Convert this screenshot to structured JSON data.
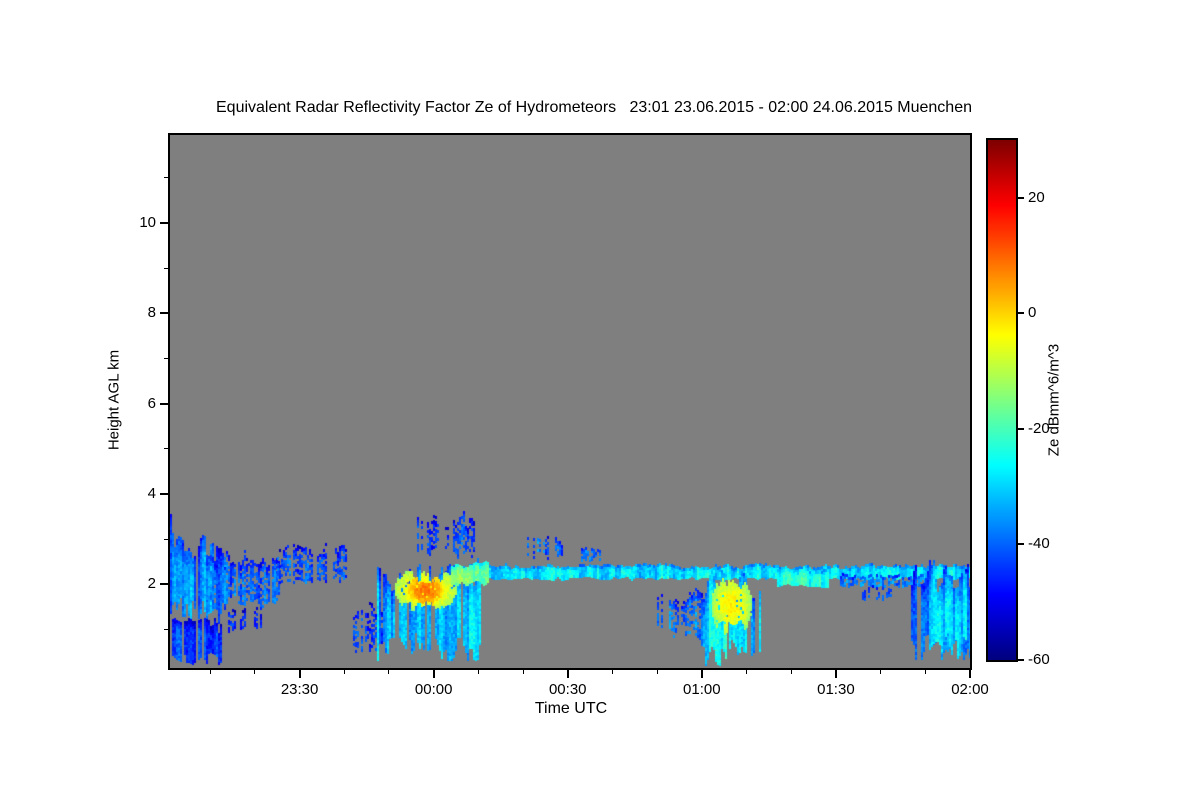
{
  "title": "Equivalent Radar Reflectivity Factor Ze of Hydrometeors   23:01 23.06.2015 - 02:00 24.06.2015 Muenchen",
  "axes": {
    "x_label": "Time UTC",
    "y_label": "Height AGL km"
  },
  "chart_data": {
    "type": "heatmap",
    "title": "Equivalent Radar Reflectivity Factor Ze of Hydrometeors",
    "time_span": "23:01 23.06.2015 - 02:00 24.06.2015",
    "station": "Muenchen",
    "xlabel": "Time UTC",
    "ylabel": "Height AGL km",
    "x_range_minutes_from_2301": [
      0,
      179
    ],
    "x_ticks": [
      {
        "minute": 29,
        "label": "23:30"
      },
      {
        "minute": 59,
        "label": "00:00"
      },
      {
        "minute": 89,
        "label": "00:30"
      },
      {
        "minute": 119,
        "label": "01:00"
      },
      {
        "minute": 149,
        "label": "01:30"
      },
      {
        "minute": 179,
        "label": "02:00"
      }
    ],
    "x_minor_tick_step_minutes": 10,
    "y_range_km": [
      0.15,
      11.95
    ],
    "y_ticks": [
      {
        "km": 2,
        "label": "2"
      },
      {
        "km": 4,
        "label": "4"
      },
      {
        "km": 6,
        "label": "6"
      },
      {
        "km": 8,
        "label": "8"
      },
      {
        "km": 10,
        "label": "10"
      }
    ],
    "y_minor_ticks_km": [
      1,
      3,
      5,
      7,
      9,
      11
    ],
    "no_data_color": "#7f7f7f",
    "colorbar": {
      "label": "Ze dBmm^6/m^3",
      "range_dB": [
        -60,
        30
      ],
      "ticks": [
        {
          "value": 20,
          "label": "20"
        },
        {
          "value": 0,
          "label": "0"
        },
        {
          "value": -20,
          "label": "-20"
        },
        {
          "value": -40,
          "label": "-40"
        },
        {
          "value": -60,
          "label": "-60"
        }
      ],
      "colormap": "jet"
    },
    "echo_regions": [
      {
        "t0": 0,
        "t1": 12,
        "zb": 1.1,
        "zt": 3.55,
        "ztEnd": 2.9,
        "v": -36,
        "vr": 8,
        "type": "streak"
      },
      {
        "t0": 0,
        "t1": 11,
        "zb": 0.2,
        "zt": 1.25,
        "v": -43,
        "vr": 6,
        "type": "streak"
      },
      {
        "t0": 9,
        "t1": 24,
        "zb": 1.4,
        "zt": 2.7,
        "v": -40,
        "vr": 6,
        "type": "patch"
      },
      {
        "t0": 13,
        "t1": 20,
        "zb": 0.9,
        "zt": 1.5,
        "v": -44,
        "vr": 4,
        "type": "sparse"
      },
      {
        "t0": 24,
        "t1": 39,
        "zb": 1.9,
        "zt": 2.9,
        "v": -42,
        "vr": 5,
        "type": "sparse"
      },
      {
        "t0": 41,
        "t1": 47,
        "zb": 0.4,
        "zt": 1.6,
        "v": -43,
        "vr": 5,
        "type": "sparse"
      },
      {
        "t0": 46,
        "t1": 69,
        "zb": 0.25,
        "zt": 2.6,
        "v": -32,
        "vr": 9,
        "type": "streak"
      },
      {
        "t0": 50,
        "t1": 64,
        "zb": 1.35,
        "zt": 2.35,
        "v": -12,
        "vr": 6,
        "type": "blob"
      },
      {
        "t0": 53,
        "t1": 61,
        "zb": 1.5,
        "zt": 2.2,
        "v": -3,
        "vr": 7,
        "type": "blob"
      },
      {
        "t0": 55,
        "t1": 68,
        "zb": 2.55,
        "zt": 3.6,
        "v": -42,
        "vr": 5,
        "type": "sparse"
      },
      {
        "t0": 63,
        "t1": 179,
        "zb": 2.08,
        "zt": 2.42,
        "v": -28,
        "vr": 6,
        "type": "layer"
      },
      {
        "t0": 63,
        "t1": 71,
        "zb": 1.95,
        "zt": 2.5,
        "v": -16,
        "vr": 5,
        "type": "layer"
      },
      {
        "t0": 80,
        "t1": 88,
        "zb": 2.5,
        "zt": 3.1,
        "v": -40,
        "vr": 5,
        "type": "sparse"
      },
      {
        "t0": 92,
        "t1": 96,
        "zb": 2.45,
        "zt": 2.8,
        "v": -38,
        "vr": 4,
        "type": "patch"
      },
      {
        "t0": 109,
        "t1": 120,
        "zb": 0.7,
        "zt": 1.9,
        "v": -38,
        "vr": 7,
        "type": "sparse"
      },
      {
        "t0": 119,
        "t1": 132,
        "zb": 0.15,
        "zt": 2.4,
        "v": -30,
        "vr": 9,
        "type": "streak"
      },
      {
        "t0": 121,
        "t1": 130,
        "zb": 0.8,
        "zt": 2.2,
        "v": -13,
        "vr": 6,
        "type": "blob"
      },
      {
        "t0": 136,
        "t1": 147,
        "zb": 1.9,
        "zt": 2.35,
        "v": -24,
        "vr": 5,
        "type": "layer"
      },
      {
        "t0": 150,
        "t1": 170,
        "zb": 1.9,
        "zt": 2.2,
        "v": -37,
        "vr": 6,
        "type": "patch"
      },
      {
        "t0": 155,
        "t1": 162,
        "zb": 1.6,
        "zt": 1.95,
        "v": -42,
        "vr": 4,
        "type": "sparse"
      },
      {
        "t0": 166,
        "t1": 179,
        "zb": 0.25,
        "zt": 2.55,
        "v": -35,
        "vr": 8,
        "type": "streak"
      },
      {
        "t0": 170,
        "t1": 178,
        "zb": 0.3,
        "zt": 2.5,
        "v": -30,
        "vr": 6,
        "type": "streak"
      }
    ]
  }
}
